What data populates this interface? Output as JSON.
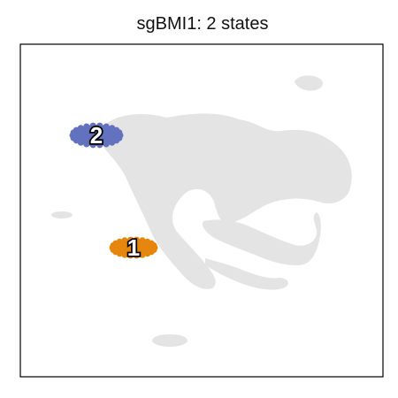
{
  "chart_data": {
    "type": "scatter",
    "title": "sgBMI1: 2 states",
    "xlabel": "",
    "ylabel": "",
    "legend": "none",
    "grid": false,
    "background_color": "#e3e3e3",
    "clusters": [
      {
        "label": "1",
        "color": "#e6860f"
      },
      {
        "label": "2",
        "color": "#6272bf"
      }
    ]
  }
}
